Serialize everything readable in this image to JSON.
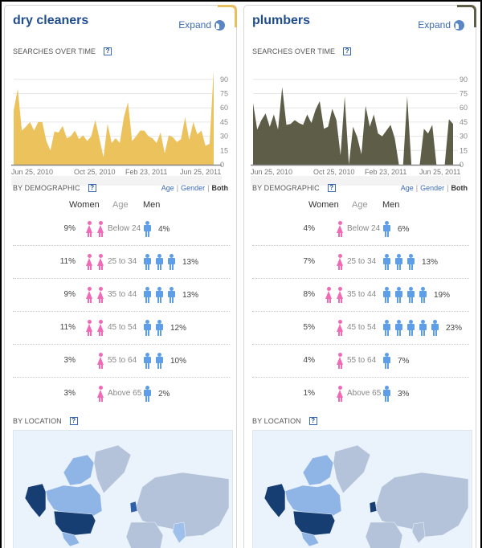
{
  "panels": [
    {
      "id": "dry-cleaners",
      "title": "dry cleaners",
      "expand_label": "Expand",
      "accent_color": "#e8c060",
      "searches_label": "SEARCHES OVER TIME",
      "help_label": "?",
      "demographic_label": "BY DEMOGRAPHIC",
      "toggle": [
        "Age",
        "Gender",
        "Both"
      ],
      "toggle_active": "Both",
      "col_women": "Women",
      "col_age": "Age",
      "col_men": "Men",
      "location_label": "BY LOCATION",
      "demographics": [
        {
          "age": "Below 24",
          "women": "9%",
          "women_icons": 2,
          "men": "4%",
          "men_icons": 1
        },
        {
          "age": "25 to 34",
          "women": "11%",
          "women_icons": 2,
          "men": "13%",
          "men_icons": 3
        },
        {
          "age": "35 to 44",
          "women": "9%",
          "women_icons": 2,
          "men": "13%",
          "men_icons": 3
        },
        {
          "age": "45 to 54",
          "women": "11%",
          "women_icons": 2,
          "men": "12%",
          "men_icons": 2
        },
        {
          "age": "55 to 64",
          "women": "3%",
          "women_icons": 1,
          "men": "10%",
          "men_icons": 2
        },
        {
          "age": "Above 65",
          "women": "3%",
          "women_icons": 1,
          "men": "2%",
          "men_icons": 1
        }
      ],
      "map_colors": {
        "us": "#163e73",
        "canada": "#8fb5e6",
        "greenland": "#b4c3da",
        "eurasia": "#b4c3da",
        "uk": "#2f5fa8",
        "india": "#9ec0ea"
      }
    },
    {
      "id": "plumbers",
      "title": "plumbers",
      "expand_label": "Expand",
      "accent_color": "#5e5e48",
      "searches_label": "SEARCHES OVER TIME",
      "help_label": "?",
      "demographic_label": "BY DEMOGRAPHIC",
      "toggle": [
        "Age",
        "Gender",
        "Both"
      ],
      "toggle_active": "Both",
      "col_women": "Women",
      "col_age": "Age",
      "col_men": "Men",
      "location_label": "BY LOCATION",
      "demographics": [
        {
          "age": "Below 24",
          "women": "4%",
          "women_icons": 1,
          "men": "6%",
          "men_icons": 1
        },
        {
          "age": "25 to 34",
          "women": "7%",
          "women_icons": 1,
          "men": "13%",
          "men_icons": 3
        },
        {
          "age": "35 to 44",
          "women": "8%",
          "women_icons": 2,
          "men": "19%",
          "men_icons": 4
        },
        {
          "age": "45 to 54",
          "women": "5%",
          "women_icons": 1,
          "men": "23%",
          "men_icons": 5
        },
        {
          "age": "55 to 64",
          "women": "4%",
          "women_icons": 1,
          "men": "7%",
          "men_icons": 1
        },
        {
          "age": "Above 65",
          "women": "1%",
          "women_icons": 1,
          "men": "3%",
          "men_icons": 1
        }
      ],
      "map_colors": {
        "us": "#163e73",
        "canada": "#8fb5e6",
        "greenland": "#b4c3da",
        "eurasia": "#b4c3da",
        "uk": "#163e73",
        "india": "#b4c3da"
      }
    }
  ],
  "chart_data": [
    {
      "type": "area",
      "title": "dry cleaners — Searches over time",
      "xlabel": "",
      "ylabel": "",
      "x_tick_labels": [
        "Jun 25, 2010",
        "Oct 25, 2010",
        "Feb 23, 2011",
        "Jun 25, 2011"
      ],
      "y_ticks": [
        0,
        15,
        30,
        45,
        60,
        75,
        90
      ],
      "ylim": [
        0,
        100
      ],
      "grid": true,
      "color": "#ecc25c",
      "values": [
        57,
        80,
        36,
        40,
        45,
        36,
        45,
        45,
        25,
        15,
        35,
        34,
        41,
        28,
        30,
        36,
        27,
        31,
        25,
        30,
        47,
        28,
        8,
        43,
        23,
        28,
        23,
        50,
        66,
        25,
        30,
        36,
        36,
        30,
        28,
        23,
        34,
        12,
        31,
        29,
        24,
        27,
        50,
        26,
        45,
        32,
        36,
        20,
        22,
        100
      ]
    },
    {
      "type": "area",
      "title": "plumbers — Searches over time",
      "xlabel": "",
      "ylabel": "",
      "x_tick_labels": [
        "Jun 25, 2010",
        "Oct 25, 2010",
        "Feb 23, 2011",
        "Jun 25, 2011"
      ],
      "y_ticks": [
        0,
        15,
        30,
        45,
        60,
        75,
        90
      ],
      "ylim": [
        0,
        100
      ],
      "grid": true,
      "color": "#5e5e48",
      "values": [
        65,
        37,
        47,
        54,
        40,
        53,
        37,
        82,
        42,
        43,
        47,
        44,
        42,
        53,
        44,
        58,
        67,
        38,
        40,
        59,
        47,
        10,
        72,
        0,
        40,
        29,
        11,
        62,
        40,
        53,
        33,
        30,
        36,
        42,
        28,
        0,
        0,
        72,
        0,
        0,
        0,
        38,
        33,
        42,
        0,
        0,
        0,
        48,
        43
      ]
    }
  ]
}
